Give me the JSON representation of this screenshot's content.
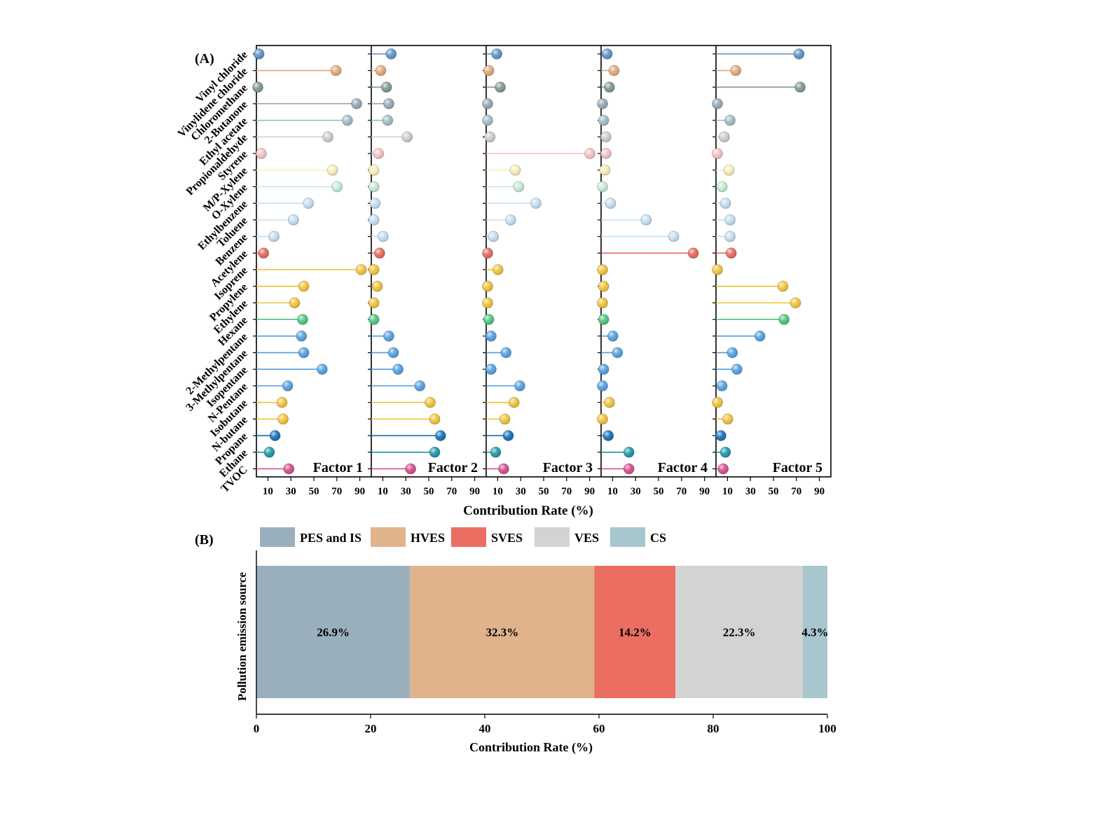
{
  "panel_a": {
    "label": "(A)",
    "xlabel": "Contribution Rate (%)",
    "tick_labels": [
      "10",
      "30",
      "50",
      "70",
      "90"
    ],
    "tick_values": [
      10,
      30,
      50,
      70,
      90
    ],
    "xlim": [
      0,
      100
    ]
  },
  "panel_b": {
    "label": "(B)",
    "xlabel": "Contribution Rate (%)",
    "ylabel": "Pollution emission source",
    "tick_labels": [
      "0",
      "20",
      "40",
      "60",
      "80",
      "100"
    ],
    "tick_values": [
      0,
      20,
      40,
      60,
      80,
      100
    ]
  },
  "chart_data": [
    {
      "type": "lollipop",
      "xlabel": "Contribution Rate (%)",
      "xlim": [
        0,
        100
      ],
      "categories": [
        "Vinyl chloride",
        "Vinylidene chloride",
        "Chloromethane",
        "2-Butanone",
        "Ethyl acetate",
        "Propionaldehyde",
        "Styrene",
        "M/P-Xylene",
        "O-Xylene",
        "Ethylbenzene",
        "Toluene",
        "Benzene",
        "Acetylene",
        "Isoprene",
        "Propylene",
        "Ethylene",
        "Hexane",
        "2-Methylpentane",
        "3-Methylpentane",
        "Isopentane",
        "N-Pentane",
        "Isobutane",
        "N-butane",
        "Propane",
        "Ethane",
        "TVOC"
      ],
      "colors": [
        "#5b8fc9",
        "#e0a878",
        "#7d9790",
        "#93a5b5",
        "#9dbcc3",
        "#cccccc",
        "#f6c1c1",
        "#fbefb6",
        "#c3ecd3",
        "#c3def2",
        "#c3def2",
        "#c3def2",
        "#e5665c",
        "#f2c232",
        "#f2c232",
        "#f2c232",
        "#4bc37b",
        "#4f9ee1",
        "#4f9ee1",
        "#4f9ee1",
        "#4f9ee1",
        "#f2c232",
        "#f2c232",
        "#0f6eb8",
        "#1795a8",
        "#d4478a"
      ],
      "series": [
        {
          "name": "Factor 1",
          "values": [
            1,
            68,
            0,
            86,
            78,
            61,
            3,
            65,
            69,
            44,
            31,
            14,
            5,
            90,
            40,
            32,
            39,
            38,
            40,
            56,
            26,
            21,
            22,
            15,
            10,
            27
          ]
        },
        {
          "name": "Factor 2",
          "values": [
            16,
            7,
            12,
            14,
            13,
            30,
            5,
            1,
            1,
            2,
            1,
            9,
            6,
            1,
            4,
            1,
            1,
            14,
            18,
            22,
            41,
            50,
            54,
            59,
            54,
            33
          ]
        },
        {
          "name": "Factor 3",
          "values": [
            8,
            1,
            11,
            0,
            0,
            2,
            89,
            24,
            27,
            42,
            20,
            5,
            0,
            9,
            0,
            0,
            1,
            3,
            16,
            3,
            28,
            23,
            15,
            18,
            7,
            14
          ]
        },
        {
          "name": "Factor 4",
          "values": [
            4,
            10,
            6,
            0,
            1,
            3,
            3,
            2,
            0,
            7,
            38,
            62,
            79,
            0,
            1,
            0,
            1,
            9,
            13,
            1,
            0,
            6,
            0,
            5,
            23,
            23
          ]
        },
        {
          "name": "Factor 5",
          "values": [
            71,
            16,
            72,
            0,
            11,
            6,
            0,
            10,
            4,
            7,
            11,
            11,
            12,
            0,
            57,
            68,
            58,
            37,
            13,
            17,
            4,
            0,
            9,
            3,
            7,
            5
          ]
        }
      ]
    },
    {
      "type": "stacked-bar",
      "xlabel": "Contribution Rate (%)",
      "ylabel": "Pollution emission source",
      "xlim": [
        0,
        100
      ],
      "legend_position": "top",
      "segments": [
        {
          "name": "PES and IS",
          "value": 26.9,
          "label": "26.9%",
          "color": "#9aafbd"
        },
        {
          "name": "HVES",
          "value": 32.3,
          "label": "32.3%",
          "color": "#e0b38d"
        },
        {
          "name": "SVES",
          "value": 14.2,
          "label": "14.2%",
          "color": "#ec6e62"
        },
        {
          "name": "VES",
          "value": 22.3,
          "label": "22.3%",
          "color": "#d3d3d3"
        },
        {
          "name": "CS",
          "value": 4.3,
          "label": "4.3%",
          "color": "#a7c6ce"
        }
      ]
    }
  ]
}
